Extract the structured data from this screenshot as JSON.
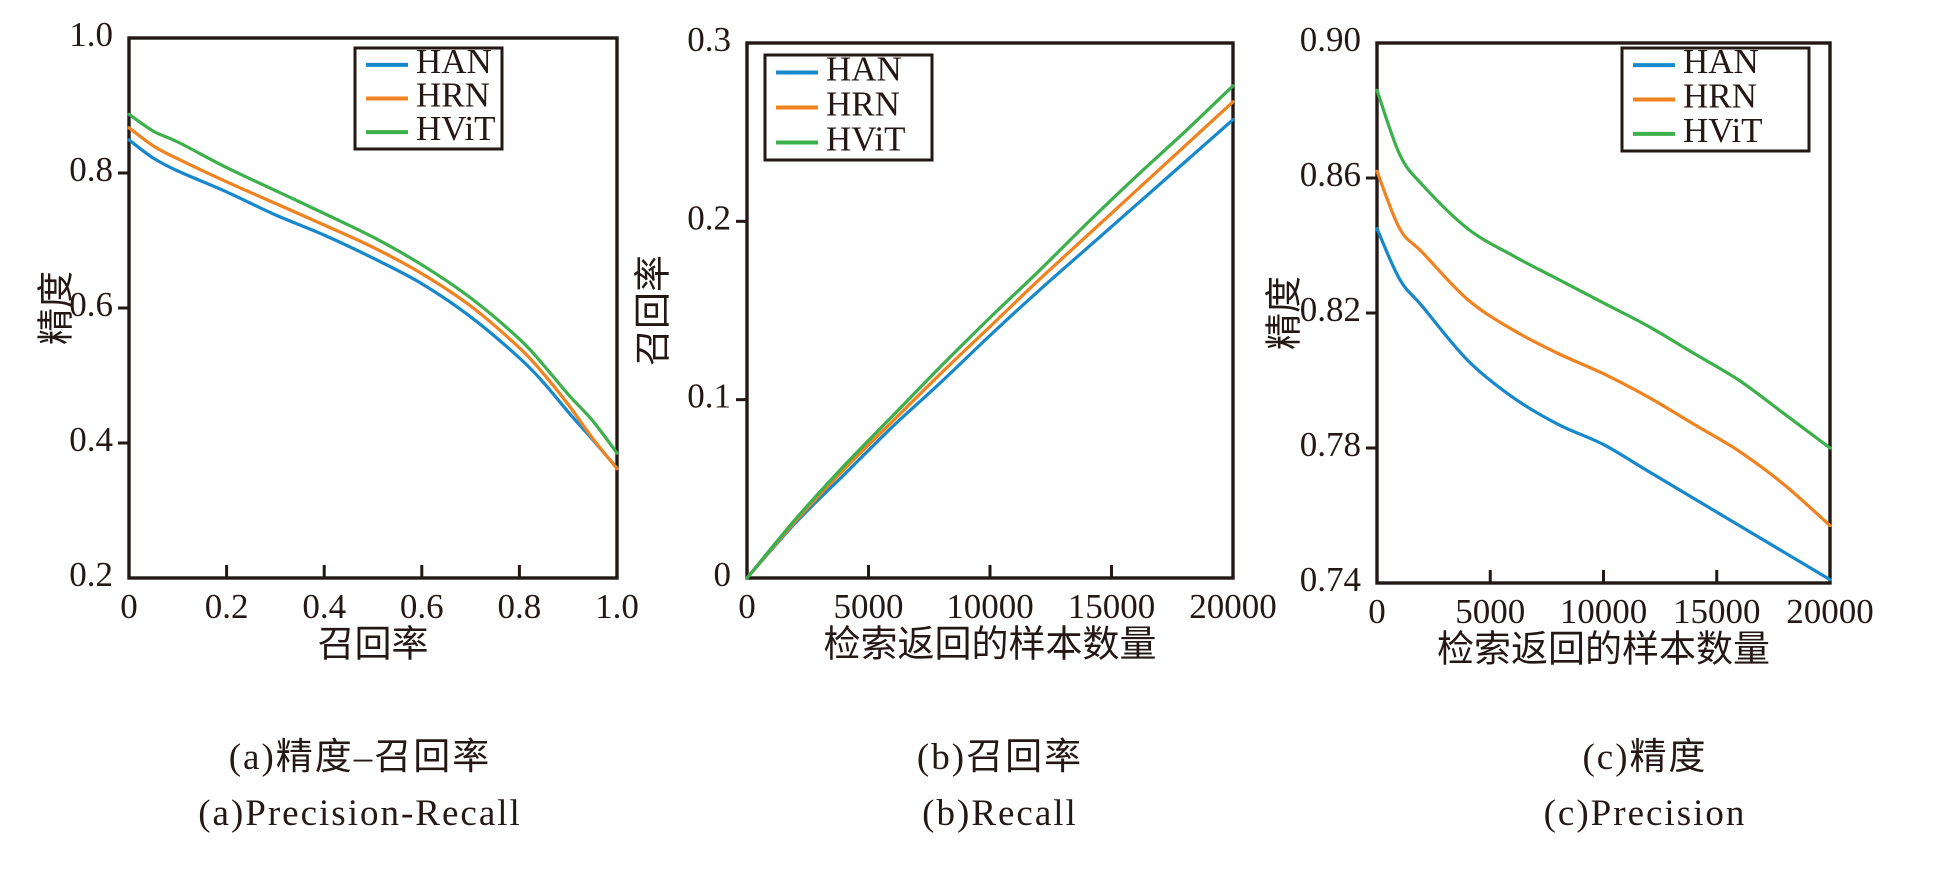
{
  "figure": {
    "background": "#ffffff",
    "text_color": "#231815",
    "axis_color": "#231815"
  },
  "legend_labels": [
    "HAN",
    "HRN",
    "HViT"
  ],
  "series_colors": {
    "HAN": "#1688cb",
    "HRN": "#f0821f",
    "HViT": "#3cb04a"
  },
  "captions": {
    "a_zh": "(a)精度–召回率",
    "a_en": "(a)Precision-Recall",
    "b_zh": "(b)召回率",
    "b_en": "(b)Recall",
    "c_zh": "(c)精度",
    "c_en": "(c)Precision"
  },
  "chart_data": [
    {
      "id": "precision-recall",
      "type": "line",
      "title": "",
      "xlabel": "召回率",
      "ylabel": "精度",
      "xlim": [
        0,
        1.0
      ],
      "ylim": [
        0.2,
        1.0
      ],
      "xtick_values": [
        0,
        0.2,
        0.4,
        0.6,
        0.8,
        1.0
      ],
      "xtick_labels": [
        "0",
        "0.2",
        "0.4",
        "0.6",
        "0.8",
        "1.0"
      ],
      "ytick_values": [
        0.2,
        0.4,
        0.6,
        0.8,
        1.0
      ],
      "ytick_labels": [
        "0.2",
        "0.4",
        "0.6",
        "0.8",
        "1.0"
      ],
      "grid": false,
      "tick_direction": {
        "x": "in",
        "y": "out"
      },
      "legend_position": "top-right",
      "series": [
        {
          "name": "HAN",
          "x": [
            0,
            0.05,
            0.1,
            0.2,
            0.3,
            0.4,
            0.5,
            0.6,
            0.7,
            0.8,
            0.85,
            0.9,
            0.95,
            1.0
          ],
          "y": [
            0.849,
            0.822,
            0.803,
            0.772,
            0.738,
            0.708,
            0.674,
            0.636,
            0.587,
            0.526,
            0.489,
            0.446,
            0.405,
            0.363
          ]
        },
        {
          "name": "HRN",
          "x": [
            0,
            0.05,
            0.1,
            0.2,
            0.3,
            0.4,
            0.5,
            0.6,
            0.7,
            0.8,
            0.85,
            0.9,
            0.95,
            1.0
          ],
          "y": [
            0.867,
            0.84,
            0.821,
            0.787,
            0.755,
            0.723,
            0.69,
            0.651,
            0.603,
            0.541,
            0.502,
            0.457,
            0.407,
            0.362
          ]
        },
        {
          "name": "HViT",
          "x": [
            0,
            0.05,
            0.1,
            0.2,
            0.3,
            0.4,
            0.5,
            0.6,
            0.7,
            0.8,
            0.85,
            0.9,
            0.95,
            1.0
          ],
          "y": [
            0.887,
            0.862,
            0.846,
            0.808,
            0.774,
            0.74,
            0.705,
            0.664,
            0.615,
            0.554,
            0.515,
            0.472,
            0.433,
            0.385
          ]
        }
      ]
    },
    {
      "id": "recall",
      "type": "line",
      "title": "",
      "xlabel": "检索返回的样本数量",
      "ylabel": "召回率",
      "xlim": [
        0,
        20000
      ],
      "ylim": [
        0,
        0.3
      ],
      "xtick_values": [
        0,
        5000,
        10000,
        15000,
        20000
      ],
      "xtick_labels": [
        "0",
        "5000",
        "10000",
        "15000",
        "20000"
      ],
      "ytick_values": [
        0,
        0.1,
        0.2,
        0.3
      ],
      "ytick_labels": [
        "0",
        "0.1",
        "0.2",
        "0.3"
      ],
      "grid": false,
      "tick_direction": {
        "x": "in",
        "y": "out"
      },
      "legend_position": "top-left",
      "series": [
        {
          "name": "HAN",
          "x": [
            0,
            2000,
            4000,
            6000,
            8000,
            10000,
            12000,
            14000,
            16000,
            18000,
            20000
          ],
          "y": [
            0,
            0.031,
            0.058,
            0.085,
            0.11,
            0.136,
            0.161,
            0.185,
            0.209,
            0.233,
            0.257
          ]
        },
        {
          "name": "HRN",
          "x": [
            0,
            2000,
            4000,
            6000,
            8000,
            10000,
            12000,
            14000,
            16000,
            18000,
            20000
          ],
          "y": [
            0,
            0.032,
            0.061,
            0.088,
            0.115,
            0.141,
            0.167,
            0.192,
            0.217,
            0.242,
            0.267
          ]
        },
        {
          "name": "HViT",
          "x": [
            0,
            2000,
            4000,
            6000,
            8000,
            10000,
            12000,
            14000,
            16000,
            18000,
            20000
          ],
          "y": [
            0,
            0.033,
            0.063,
            0.091,
            0.119,
            0.146,
            0.172,
            0.199,
            0.225,
            0.25,
            0.276
          ]
        }
      ]
    },
    {
      "id": "precision",
      "type": "line",
      "title": "",
      "xlabel": "检索返回的样本数量",
      "ylabel": "精度",
      "xlim": [
        0,
        20000
      ],
      "ylim": [
        0.74,
        0.9
      ],
      "xtick_values": [
        0,
        5000,
        10000,
        15000,
        20000
      ],
      "xtick_labels": [
        "0",
        "5000",
        "10000",
        "15000",
        "20000"
      ],
      "ytick_values": [
        0.74,
        0.78,
        0.82,
        0.86,
        0.9
      ],
      "ytick_labels": [
        "0.74",
        "0.78",
        "0.82",
        "0.86",
        "0.90"
      ],
      "grid": false,
      "tick_direction": {
        "x": "in",
        "y": "out"
      },
      "legend_position": "top-right",
      "series": [
        {
          "name": "HAN",
          "x": [
            0,
            1000,
            2000,
            4000,
            6000,
            8000,
            10000,
            12000,
            14000,
            16000,
            18000,
            20000
          ],
          "y": [
            0.845,
            0.83,
            0.822,
            0.806,
            0.795,
            0.787,
            0.781,
            0.773,
            0.765,
            0.757,
            0.749,
            0.741
          ]
        },
        {
          "name": "HRN",
          "x": [
            0,
            1000,
            2000,
            4000,
            6000,
            8000,
            10000,
            12000,
            14000,
            16000,
            18000,
            20000
          ],
          "y": [
            0.862,
            0.845,
            0.838,
            0.824,
            0.815,
            0.808,
            0.802,
            0.795,
            0.787,
            0.779,
            0.769,
            0.757
          ]
        },
        {
          "name": "HViT",
          "x": [
            0,
            1000,
            2000,
            4000,
            6000,
            8000,
            10000,
            12000,
            14000,
            16000,
            18000,
            20000
          ],
          "y": [
            0.886,
            0.867,
            0.858,
            0.845,
            0.837,
            0.83,
            0.823,
            0.816,
            0.808,
            0.8,
            0.79,
            0.78
          ]
        }
      ]
    }
  ]
}
